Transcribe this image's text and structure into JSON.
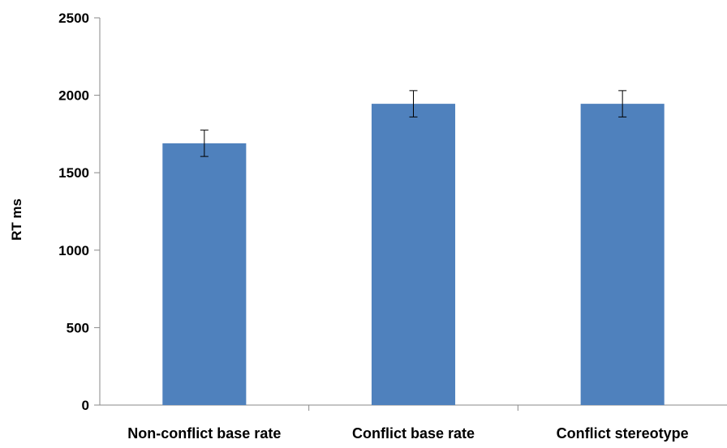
{
  "chart_data": {
    "type": "bar",
    "title": "",
    "xlabel": "",
    "ylabel": "RT ms",
    "ylim": [
      0,
      2500
    ],
    "yticks": [
      0,
      500,
      1000,
      1500,
      2000,
      2500
    ],
    "categories": [
      "Non-conflict base rate",
      "Conflict base rate",
      "Conflict stereotype"
    ],
    "series": [
      {
        "values": [
          1690,
          1945,
          1945
        ],
        "error": [
          85,
          85,
          85
        ],
        "color": "#4F81BD"
      }
    ],
    "grid": false,
    "legend": "none"
  }
}
